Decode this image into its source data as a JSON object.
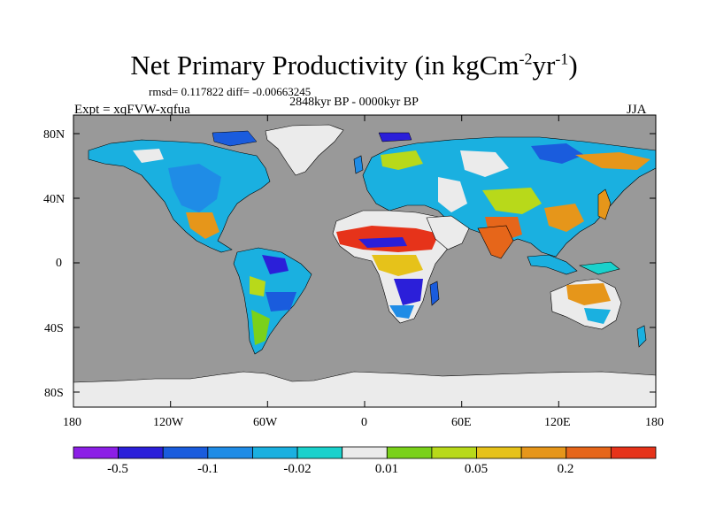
{
  "title": {
    "main": "Net Primary Productivity (in kgCm",
    "sup1": "-2",
    "mid": "yr",
    "sup2": "-1",
    "end": ")"
  },
  "stats_text": "rmsd= 0.117822  diff= -0.00663245",
  "period_text": "2848kyr BP - 0000kyr BP",
  "experiment_text": "Expt = xqFVW-xqfua",
  "season_text": "JJA",
  "map": {
    "ocean_color": "#999999",
    "land_neutral_color": "#ebebeb",
    "lat_ticks": [
      "80N",
      "40N",
      "0",
      "40S",
      "80S"
    ],
    "lon_ticks": [
      "180",
      "120W",
      "60W",
      "0",
      "60E",
      "120E",
      "180"
    ]
  },
  "colorbar": {
    "colors": [
      "#8c1fe6",
      "#2b1fd9",
      "#1a5cdd",
      "#1f8ce6",
      "#1ab0e0",
      "#1ad1cc",
      "#ebebeb",
      "#7ad11a",
      "#b8d91a",
      "#e6c21a",
      "#e6961a",
      "#e6661a",
      "#e6331a"
    ],
    "labels": [
      "-0.5",
      "-0.1",
      "-0.02",
      "0.01",
      "0.05",
      "0.2"
    ]
  }
}
